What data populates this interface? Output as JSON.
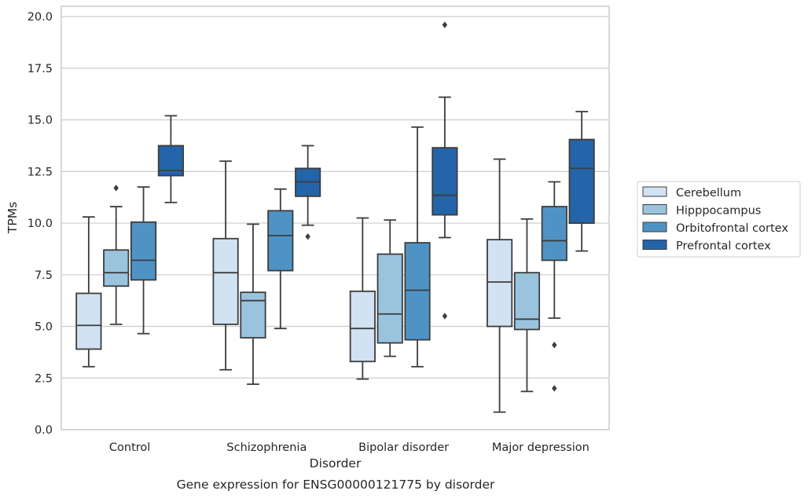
{
  "chart_data": {
    "type": "box",
    "caption": "Gene expression for ENSG00000121775 by disorder",
    "xlabel": "Disorder",
    "ylabel": "TPMs",
    "ylim": [
      0,
      20.5
    ],
    "yticks": [
      "0.0",
      "2.5",
      "5.0",
      "7.5",
      "10.0",
      "12.5",
      "15.0",
      "17.5",
      "20.0"
    ],
    "grid": "horizontal",
    "legend_placement": "right",
    "categories": [
      "Control",
      "Schizophrenia",
      "Bipolar disorder",
      "Major depression"
    ],
    "series": [
      {
        "name": "Cerebellum",
        "color": "#d1e2f2",
        "boxes": [
          {
            "whisker_low": 3.05,
            "q1": 3.9,
            "median": 5.05,
            "q3": 6.6,
            "whisker_high": 10.3,
            "outliers": []
          },
          {
            "whisker_low": 2.9,
            "q1": 5.1,
            "median": 7.6,
            "q3": 9.25,
            "whisker_high": 13.0,
            "outliers": []
          },
          {
            "whisker_low": 2.45,
            "q1": 3.3,
            "median": 4.9,
            "q3": 6.7,
            "whisker_high": 10.25,
            "outliers": []
          },
          {
            "whisker_low": 0.85,
            "q1": 5.0,
            "median": 7.15,
            "q3": 9.2,
            "whisker_high": 13.1,
            "outliers": []
          }
        ]
      },
      {
        "name": "Hipppocampus",
        "color": "#9ac3de",
        "boxes": [
          {
            "whisker_low": 5.1,
            "q1": 6.95,
            "median": 7.6,
            "q3": 8.7,
            "whisker_high": 10.8,
            "outliers": [
              11.7
            ]
          },
          {
            "whisker_low": 2.2,
            "q1": 4.45,
            "median": 6.25,
            "q3": 6.65,
            "whisker_high": 9.95,
            "outliers": []
          },
          {
            "whisker_low": 3.55,
            "q1": 4.2,
            "median": 5.6,
            "q3": 8.5,
            "whisker_high": 10.15,
            "outliers": []
          },
          {
            "whisker_low": 1.85,
            "q1": 4.85,
            "median": 5.35,
            "q3": 7.6,
            "whisker_high": 10.2,
            "outliers": []
          }
        ]
      },
      {
        "name": "Orbitofrontal cortex",
        "color": "#4f93c4",
        "boxes": [
          {
            "whisker_low": 4.65,
            "q1": 7.25,
            "median": 8.2,
            "q3": 10.05,
            "whisker_high": 11.75,
            "outliers": []
          },
          {
            "whisker_low": 4.9,
            "q1": 7.7,
            "median": 9.4,
            "q3": 10.6,
            "whisker_high": 11.65,
            "outliers": []
          },
          {
            "whisker_low": 3.05,
            "q1": 4.35,
            "median": 6.75,
            "q3": 9.05,
            "whisker_high": 14.65,
            "outliers": []
          },
          {
            "whisker_low": 5.4,
            "q1": 8.2,
            "median": 9.15,
            "q3": 10.8,
            "whisker_high": 12.0,
            "outliers": [
              4.1,
              2.0
            ]
          }
        ]
      },
      {
        "name": "Prefrontal cortex",
        "color": "#2464a8",
        "boxes": [
          {
            "whisker_low": 11.0,
            "q1": 12.3,
            "median": 12.55,
            "q3": 13.75,
            "whisker_high": 15.2,
            "outliers": []
          },
          {
            "whisker_low": 9.9,
            "q1": 11.3,
            "median": 12.0,
            "q3": 12.65,
            "whisker_high": 13.75,
            "outliers": [
              9.35
            ]
          },
          {
            "whisker_low": 9.3,
            "q1": 10.4,
            "median": 11.35,
            "q3": 13.65,
            "whisker_high": 16.1,
            "outliers": [
              19.6,
              5.5
            ]
          },
          {
            "whisker_low": 8.65,
            "q1": 10.0,
            "median": 12.65,
            "q3": 14.05,
            "whisker_high": 15.4,
            "outliers": []
          }
        ]
      }
    ]
  }
}
